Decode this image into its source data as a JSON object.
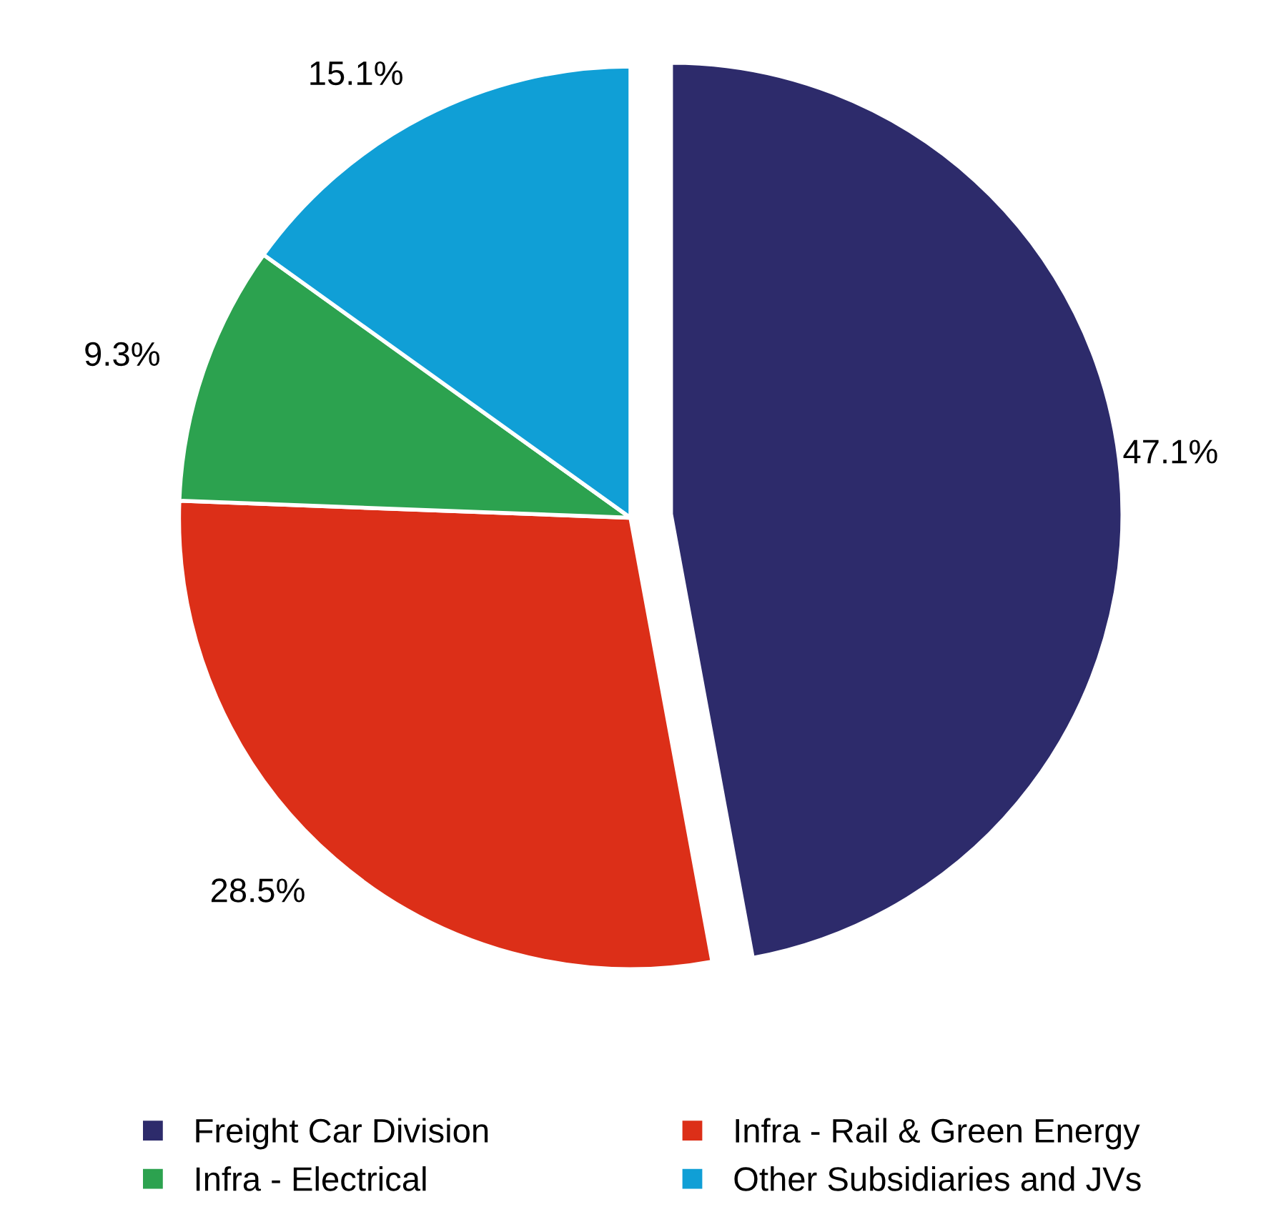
{
  "chart_data": {
    "type": "pie",
    "categories": [
      "Freight Car Division",
      "Infra - Rail & Green Energy",
      "Infra - Electrical",
      "Other Subsidiaries and JVs"
    ],
    "values": [
      47.1,
      28.5,
      9.3,
      15.1
    ],
    "colors": [
      "#2d2b6b",
      "#dc2f18",
      "#2ca24f",
      "#109fd6"
    ],
    "value_labels": [
      "47.1%",
      "28.5%",
      "9.3%",
      "15.1%"
    ],
    "legend": "bottom"
  }
}
